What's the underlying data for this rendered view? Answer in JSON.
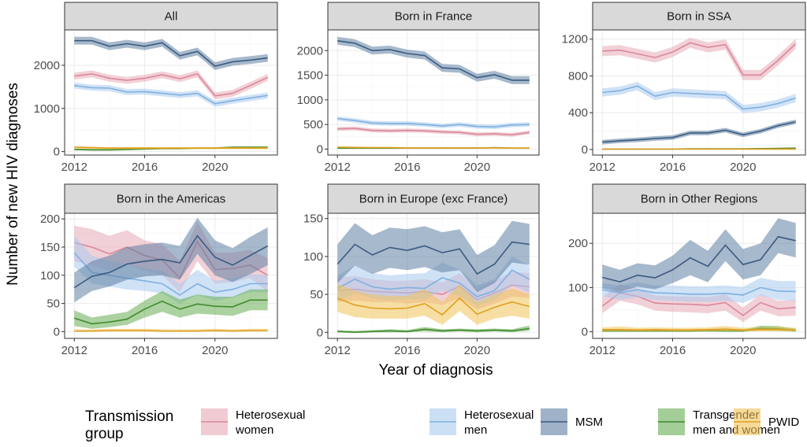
{
  "chart_data": {
    "type": "area",
    "title": "",
    "xlabel": "Year of diagnosis",
    "ylabel": "Number of new HIV diagnoses",
    "x": [
      2012,
      2013,
      2014,
      2015,
      2016,
      2017,
      2018,
      2019,
      2020,
      2021,
      2022,
      2023
    ],
    "x_ticks": [
      2012,
      2016,
      2020
    ],
    "grid": true,
    "legend": {
      "title": [
        "Transmission",
        "group"
      ],
      "position": "bottom",
      "entries": [
        {
          "key": "het_women",
          "label": [
            "Heterosexual",
            "women"
          ]
        },
        {
          "key": "het_men",
          "label": [
            "Heterosexual",
            "men"
          ]
        },
        {
          "key": "msm",
          "label": [
            "MSM"
          ]
        },
        {
          "key": "trans",
          "label": [
            "Transgender",
            "men and women"
          ]
        },
        {
          "key": "pwid",
          "label": [
            "PWID"
          ]
        }
      ]
    },
    "colors": {
      "het_women": {
        "line": "#d9889a",
        "fill": "#e7a9b6"
      },
      "het_men": {
        "line": "#7fb0e0",
        "fill": "#a9cbee"
      },
      "msm": {
        "line": "#3b5a80",
        "fill": "#5f7fa3"
      },
      "trans": {
        "line": "#3f8a2c",
        "fill": "#66ad52"
      },
      "pwid": {
        "line": "#e0a020",
        "fill": "#f0c257"
      }
    },
    "panels": [
      {
        "title": "All",
        "ylim": [
          -80,
          2820
        ],
        "y_ticks": [
          0,
          1000,
          2000
        ],
        "series": {
          "msm": {
            "values": [
              2570,
              2570,
              2440,
              2500,
              2440,
              2520,
              2220,
              2320,
              1980,
              2080,
              2120,
              2170
            ],
            "ci": 90
          },
          "het_women": {
            "values": [
              1750,
              1800,
              1700,
              1650,
              1700,
              1780,
              1690,
              1800,
              1290,
              1350,
              1530,
              1720
            ],
            "ci": 80
          },
          "het_men": {
            "values": [
              1530,
              1480,
              1470,
              1380,
              1390,
              1350,
              1310,
              1350,
              1110,
              1180,
              1240,
              1300
            ],
            "ci": 70
          },
          "trans": {
            "values": [
              50,
              40,
              40,
              50,
              60,
              70,
              70,
              80,
              80,
              100,
              100,
              100
            ],
            "ci": 20
          },
          "pwid": {
            "values": [
              100,
              90,
              80,
              80,
              80,
              80,
              80,
              80,
              80,
              80,
              80,
              80
            ],
            "ci": 25
          }
        }
      },
      {
        "title": "Born in France",
        "ylim": [
          -120,
          2420
        ],
        "y_ticks": [
          0,
          500,
          1000,
          1500,
          2000
        ],
        "series": {
          "msm": {
            "values": [
              2200,
              2150,
              2000,
              2020,
              1940,
              1900,
              1650,
              1630,
              1450,
              1510,
              1400,
              1400
            ],
            "ci": 80
          },
          "het_men": {
            "values": [
              620,
              580,
              530,
              520,
              520,
              500,
              470,
              500,
              460,
              450,
              490,
              500
            ],
            "ci": 45
          },
          "het_women": {
            "values": [
              410,
              420,
              380,
              370,
              380,
              370,
              350,
              340,
              300,
              310,
              290,
              340
            ],
            "ci": 40
          },
          "trans": {
            "values": [
              20,
              20,
              20,
              20,
              20,
              20,
              20,
              20,
              20,
              30,
              20,
              20
            ],
            "ci": 10
          },
          "pwid": {
            "values": [
              40,
              35,
              30,
              30,
              25,
              25,
              25,
              25,
              25,
              25,
              20,
              20
            ],
            "ci": 15
          }
        }
      },
      {
        "title": "Born in SSA",
        "ylim": [
          -60,
          1300
        ],
        "y_ticks": [
          0,
          400,
          800,
          1200
        ],
        "series": {
          "het_women": {
            "values": [
              1070,
              1080,
              1040,
              1000,
              1060,
              1160,
              1110,
              1140,
              810,
              810,
              970,
              1150
            ],
            "ci": 55
          },
          "het_men": {
            "values": [
              620,
              640,
              690,
              580,
              620,
              610,
              600,
              590,
              440,
              460,
              500,
              560
            ],
            "ci": 45
          },
          "msm": {
            "values": [
              80,
              95,
              105,
              120,
              130,
              180,
              180,
              210,
              160,
              200,
              260,
              300
            ],
            "ci": 25
          },
          "trans": {
            "values": [
              5,
              5,
              5,
              5,
              5,
              8,
              8,
              8,
              8,
              10,
              12,
              15
            ],
            "ci": 5
          },
          "pwid": {
            "values": [
              5,
              5,
              5,
              5,
              5,
              5,
              5,
              5,
              5,
              5,
              5,
              5
            ],
            "ci": 4
          }
        }
      },
      {
        "title": "Born in the Americas",
        "ylim": [
          -12,
          210
        ],
        "y_ticks": [
          0,
          50,
          100,
          150,
          200
        ],
        "series": {
          "het_women": {
            "values": [
              158,
              150,
              138,
              150,
              135,
              127,
              95,
              160,
              110,
              112,
              118,
              100
            ],
            "lo": [
              125,
              118,
              108,
              120,
              108,
              100,
              70,
              125,
              85,
              88,
              95,
              70
            ],
            "hi": [
              188,
              182,
              170,
              180,
              162,
              155,
              125,
              195,
              140,
              140,
              145,
              130
            ]
          },
          "het_men": {
            "values": [
              140,
              105,
              100,
              95,
              90,
              85,
              65,
              85,
              70,
              75,
              85,
              85
            ],
            "lo": [
              115,
              85,
              80,
              75,
              72,
              68,
              50,
              65,
              55,
              60,
              70,
              70
            ],
            "hi": [
              170,
              135,
              125,
              120,
              112,
              108,
              85,
              110,
              90,
              95,
              102,
              100
            ]
          },
          "msm": {
            "values": [
              78,
              98,
              105,
              120,
              125,
              128,
              122,
              170,
              132,
              118,
              135,
              152
            ],
            "lo": [
              52,
              72,
              80,
              92,
              98,
              100,
              92,
              138,
              100,
              88,
              102,
              118
            ],
            "hi": [
              105,
              125,
              135,
              150,
              155,
              158,
              152,
              202,
              162,
              148,
              168,
              185
            ]
          },
          "trans": {
            "values": [
              24,
              14,
              17,
              22,
              40,
              54,
              40,
              49,
              45,
              44,
              56,
              56
            ],
            "lo": [
              10,
              5,
              8,
              12,
              25,
              35,
              25,
              32,
              30,
              28,
              38,
              38
            ],
            "hi": [
              38,
              25,
              30,
              35,
              55,
              72,
              57,
              66,
              62,
              62,
              75,
              75
            ]
          },
          "pwid": {
            "values": [
              1,
              1,
              2,
              2,
              2,
              1,
              1,
              1,
              2,
              1,
              2,
              2
            ],
            "lo": [
              0,
              0,
              0,
              0,
              0,
              0,
              0,
              0,
              0,
              0,
              0,
              0
            ],
            "hi": [
              4,
              4,
              5,
              5,
              5,
              4,
              4,
              4,
              5,
              4,
              5,
              5
            ]
          }
        }
      },
      {
        "title": "Born in Europe (exc France)",
        "ylim": [
          -8,
          157
        ],
        "y_ticks": [
          0,
          50,
          100,
          150
        ],
        "series": {
          "msm": {
            "values": [
              90,
              116,
              102,
              112,
              108,
              114,
              105,
              110,
              77,
              90,
              119,
              116
            ],
            "lo": [
              65,
              88,
              77,
              85,
              82,
              86,
              79,
              82,
              53,
              65,
              92,
              89
            ],
            "hi": [
              116,
              144,
              128,
              138,
              136,
              140,
              132,
              136,
              102,
              115,
              147,
              143
            ]
          },
          "het_men": {
            "values": [
              58,
              70,
              60,
              57,
              59,
              58,
              72,
              65,
              47,
              55,
              82,
              70
            ],
            "lo": [
              40,
              52,
              45,
              42,
              44,
              43,
              55,
              48,
              35,
              42,
              62,
              52
            ],
            "hi": [
              75,
              88,
              78,
              75,
              77,
              78,
              92,
              83,
              62,
              70,
              100,
              88
            ]
          },
          "het_women": {
            "values": [
              55,
              57,
              54,
              53,
              52,
              54,
              50,
              61,
              43,
              52,
              62,
              60
            ],
            "lo": [
              40,
              42,
              40,
              40,
              38,
              40,
              36,
              45,
              30,
              38,
              47,
              45
            ],
            "hi": [
              72,
              74,
              70,
              68,
              68,
              70,
              66,
              78,
              58,
              68,
              80,
              78
            ]
          },
          "pwid": {
            "values": [
              45,
              36,
              32,
              31,
              32,
              38,
              23,
              45,
              24,
              33,
              40,
              34
            ],
            "lo": [
              27,
              20,
              18,
              18,
              18,
              22,
              10,
              28,
              10,
              18,
              22,
              18
            ],
            "hi": [
              64,
              55,
              50,
              48,
              48,
              57,
              40,
              63,
              40,
              50,
              58,
              50
            ]
          },
          "trans": {
            "values": [
              1,
              0,
              1,
              2,
              1,
              4,
              2,
              3,
              2,
              3,
              2,
              5
            ],
            "lo": [
              0,
              0,
              0,
              0,
              0,
              1,
              0,
              1,
              0,
              1,
              0,
              2
            ],
            "hi": [
              3,
              2,
              3,
              4,
              3,
              7,
              4,
              5,
              4,
              5,
              4,
              9
            ]
          }
        }
      },
      {
        "title": "Born in Other Regions",
        "ylim": [
          -15,
          268
        ],
        "y_ticks": [
          0,
          100,
          200
        ],
        "series": {
          "msm": {
            "values": [
              123,
              113,
              128,
              122,
              140,
              167,
              148,
              196,
              152,
              163,
              215,
              206
            ],
            "lo": [
              98,
              90,
              102,
              96,
              110,
              128,
              112,
              160,
              118,
              128,
              178,
              168
            ],
            "hi": [
              152,
              140,
              155,
              150,
              172,
              208,
              183,
              232,
              187,
              200,
              257,
              246
            ]
          },
          "het_men": {
            "values": [
              95,
              88,
              95,
              88,
              87,
              85,
              85,
              87,
              83,
              100,
              92,
              91
            ],
            "lo": [
              80,
              72,
              78,
              72,
              70,
              68,
              68,
              70,
              65,
              82,
              72,
              70
            ],
            "hi": [
              110,
              105,
              112,
              105,
              105,
              103,
              103,
              105,
              101,
              122,
              115,
              115
            ]
          },
          "het_women": {
            "values": [
              58,
              88,
              80,
              65,
              63,
              62,
              60,
              66,
              37,
              66,
              52,
              55
            ],
            "lo": [
              42,
              70,
              62,
              48,
              45,
              44,
              42,
              48,
              22,
              48,
              35,
              36
            ],
            "hi": [
              78,
              108,
              98,
              82,
              80,
              80,
              78,
              85,
              55,
              85,
              70,
              72
            ]
          },
          "pwid": {
            "values": [
              5,
              5,
              4,
              5,
              4,
              4,
              5,
              6,
              4,
              5,
              5,
              4
            ],
            "lo": [
              1,
              1,
              1,
              1,
              1,
              1,
              1,
              1,
              1,
              1,
              1,
              1
            ],
            "hi": [
              10,
              12,
              9,
              10,
              9,
              9,
              10,
              13,
              9,
              10,
              11,
              9
            ]
          },
          "trans": {
            "values": [
              2,
              2,
              2,
              2,
              2,
              2,
              3,
              2,
              2,
              8,
              7,
              3
            ],
            "lo": [
              0,
              0,
              0,
              0,
              0,
              0,
              0,
              0,
              0,
              3,
              2,
              0
            ],
            "hi": [
              5,
              5,
              5,
              5,
              5,
              5,
              6,
              5,
              5,
              14,
              13,
              7
            ]
          }
        }
      }
    ]
  }
}
